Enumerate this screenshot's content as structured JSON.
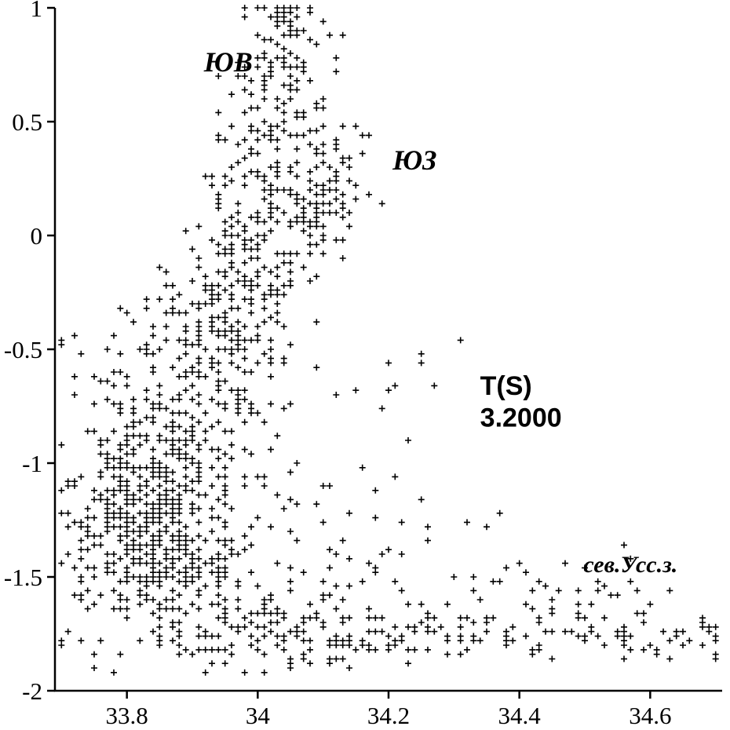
{
  "page": {
    "background_color": "#ffffff",
    "marker_glyph": "plus-sign"
  },
  "chart_data": {
    "type": "scatter",
    "title": "",
    "xlabel": "",
    "ylabel": "",
    "xlim": [
      33.69,
      34.71
    ],
    "ylim": [
      -2,
      1
    ],
    "x_ticks": [
      33.8,
      34.0,
      34.2,
      34.4,
      34.6
    ],
    "x_tick_labels": [
      "33.8",
      "34",
      "34.2",
      "34.4",
      "34.6"
    ],
    "y_ticks": [
      1,
      0.5,
      0,
      -0.5,
      -1,
      -1.5,
      -2
    ],
    "y_tick_labels": [
      "1",
      "0.5",
      "0",
      "-0.5",
      "-1",
      "-1.5",
      "-2"
    ],
    "grid": false,
    "legend": null,
    "marker": "plus",
    "marker_color": "#000000",
    "axis_color": "#000000",
    "seed": 42,
    "quantize": {
      "x": 0.01,
      "y": 0.02
    },
    "clusters": [
      {
        "cx": 33.82,
        "cy": -1.08,
        "sx": 0.045,
        "sy": 0.17,
        "n": 230
      },
      {
        "cx": 33.85,
        "cy": -1.42,
        "sx": 0.055,
        "sy": 0.13,
        "n": 230
      },
      {
        "cx": 33.9,
        "cy": -0.95,
        "sx": 0.07,
        "sy": 0.22,
        "n": 150
      },
      {
        "cx": 33.95,
        "cy": -0.55,
        "sx": 0.05,
        "sy": 0.18,
        "n": 90
      },
      {
        "cx": 33.98,
        "cy": -0.15,
        "sx": 0.045,
        "sy": 0.22,
        "n": 140
      },
      {
        "cx": 34.02,
        "cy": 0.3,
        "sx": 0.04,
        "sy": 0.2,
        "n": 110
      },
      {
        "cx": 34.04,
        "cy": 0.75,
        "sx": 0.035,
        "sy": 0.17,
        "n": 80
      },
      {
        "cx": 34.05,
        "cy": 0.97,
        "sx": 0.025,
        "sy": 0.05,
        "n": 25
      },
      {
        "cx": 34.1,
        "cy": 0.12,
        "sx": 0.03,
        "sy": 0.13,
        "n": 80
      },
      {
        "cx": 34.12,
        "cy": 0.38,
        "sx": 0.025,
        "sy": 0.06,
        "n": 20
      },
      {
        "cx": 34.0,
        "cy": -1.65,
        "sx": 0.09,
        "sy": 0.12,
        "n": 90
      },
      {
        "cx": 34.1,
        "cy": -1.78,
        "sx": 0.18,
        "sy": 0.055,
        "n": 130
      },
      {
        "cx": 34.42,
        "cy": -1.72,
        "sx": 0.15,
        "sy": 0.06,
        "n": 70
      },
      {
        "cx": 34.62,
        "cy": -1.78,
        "sx": 0.06,
        "sy": 0.04,
        "n": 18
      },
      {
        "cx": 34.15,
        "cy": -1.35,
        "sx": 0.12,
        "sy": 0.18,
        "n": 45
      },
      {
        "cx": 33.73,
        "cy": -1.35,
        "sx": 0.025,
        "sy": 0.2,
        "n": 40
      },
      {
        "cx": 34.2,
        "cy": -0.85,
        "sx": 0.05,
        "sy": 0.25,
        "n": 12
      },
      {
        "cx": 33.9,
        "cy": -0.3,
        "sx": 0.06,
        "sy": 0.15,
        "n": 35
      },
      {
        "cx": 34.5,
        "cy": -1.55,
        "sx": 0.08,
        "sy": 0.07,
        "n": 25
      },
      {
        "cx": 33.79,
        "cy": -0.5,
        "sx": 0.05,
        "sy": 0.12,
        "n": 25
      }
    ],
    "extra_points": [
      [
        34.25,
        -0.57
      ],
      [
        33.705,
        -0.47
      ],
      [
        34.68,
        -1.8
      ],
      [
        34.66,
        -1.78
      ],
      [
        34.35,
        -1.28
      ],
      [
        34.63,
        -1.56
      ],
      [
        33.72,
        -0.44
      ]
    ],
    "annotations": [
      {
        "name": "se-watermass-label",
        "text": "ЮВ",
        "x": 33.955,
        "y": 0.72,
        "style": "serif-bold-italic",
        "size": 36,
        "anchor": "middle"
      },
      {
        "name": "sw-watermass-label",
        "text": "ЮЗ",
        "x": 34.24,
        "y": 0.29,
        "style": "serif-bold-italic",
        "size": 36,
        "anchor": "middle"
      },
      {
        "name": "ts-title",
        "text": "T(S)",
        "x": 34.34,
        "y": -0.7,
        "style": "sans-bold",
        "size": 34,
        "anchor": "start"
      },
      {
        "name": "ts-subtitle",
        "text": "3.2000",
        "x": 34.34,
        "y": -0.84,
        "style": "sans-bold",
        "size": 34,
        "anchor": "start"
      },
      {
        "name": "sev-uss-label",
        "text": "сев.Усс.з.",
        "x": 34.57,
        "y": -1.48,
        "style": "serif-bold-italic",
        "size": 30,
        "anchor": "middle"
      }
    ]
  }
}
